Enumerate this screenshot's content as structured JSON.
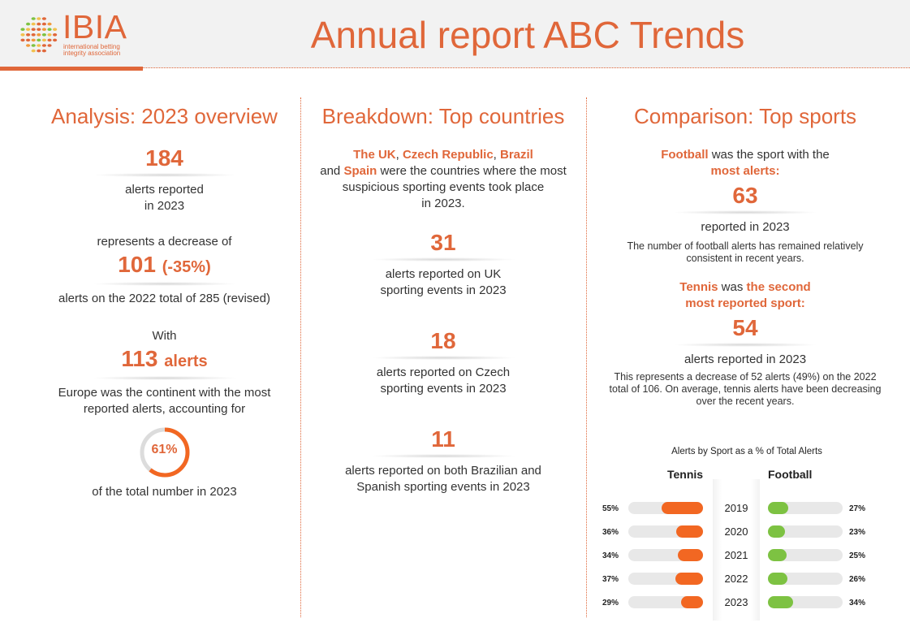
{
  "header": {
    "logo_text": "IBIA",
    "logo_sub_line1": "international betting",
    "logo_sub_line2": "integrity association",
    "title": "Annual report ABC Trends"
  },
  "colors": {
    "accent": "#e0673a",
    "tennis_bar": "#f26722",
    "football_bar": "#7dc242",
    "track": "#e8e8e8"
  },
  "analysis": {
    "title": "Analysis: 2023 overview",
    "total_alerts": "184",
    "total_alerts_text_1": "alerts reported",
    "total_alerts_text_2": "in 2023",
    "decrease_intro": "represents a decrease of",
    "decrease_value": "101",
    "decrease_pct": "(-35%)",
    "decrease_text": "alerts on the 2022 total of 285 (revised)",
    "with_label": "With",
    "europe_value": "113",
    "europe_unit": "alerts",
    "europe_text_1": "Europe was the continent with the most",
    "europe_text_2": "reported alerts, accounting for",
    "europe_share_label": "61%",
    "europe_share_value": 61,
    "europe_share_text": "of the total number in 2023"
  },
  "countries": {
    "title": "Breakdown: Top countries",
    "c1": "The UK",
    "sep1": ", ",
    "c2": "Czech Republic",
    "sep2": ", ",
    "c3": "Brazil",
    "line2_pre": "and ",
    "c4": "Spain",
    "line2_post": " were the countries where the most",
    "line3": "suspicious sporting events took place",
    "line4": "in 2023.",
    "uk_value": "31",
    "uk_text_1": "alerts reported on UK",
    "uk_text_2": "sporting events in 2023",
    "cz_value": "18",
    "cz_text_1": "alerts reported on Czech",
    "cz_text_2": "sporting events in 2023",
    "br_value": "11",
    "br_text_1": "alerts reported on both Brazilian and",
    "br_text_2": "Spanish sporting events in 2023"
  },
  "sports": {
    "title": "Comparison: Top sports",
    "football_name": "Football",
    "football_line1_rest": " was the sport with the",
    "football_line2": "most alerts:",
    "football_value": "63",
    "football_text": "reported in 2023",
    "football_note_1": "The number of football alerts has remained relatively",
    "football_note_2": "consistent in recent years.",
    "tennis_name": "Tennis",
    "tennis_line1_mid": " was ",
    "tennis_line1_hl": "the second",
    "tennis_line2": "most reported sport:",
    "tennis_value": "54",
    "tennis_text": "alerts reported in 2023",
    "tennis_note_1": "This represents a decrease of 52 alerts (49%) on the 2022",
    "tennis_note_2": "total of 106. On average, tennis alerts have been decreasing",
    "tennis_note_3": "over the recent years."
  },
  "chart_data": {
    "type": "bar",
    "title": "Alerts by Sport as a % of Total Alerts",
    "categories": [
      "2019",
      "2020",
      "2021",
      "2022",
      "2023"
    ],
    "series": [
      {
        "name": "Tennis",
        "values": [
          55,
          36,
          34,
          37,
          29
        ],
        "labels": [
          "55%",
          "36%",
          "34%",
          "37%",
          "29%"
        ]
      },
      {
        "name": "Football",
        "values": [
          27,
          23,
          25,
          26,
          34
        ],
        "labels": [
          "27%",
          "23%",
          "25%",
          "26%",
          "34%"
        ]
      }
    ],
    "ylim": [
      0,
      100
    ]
  }
}
